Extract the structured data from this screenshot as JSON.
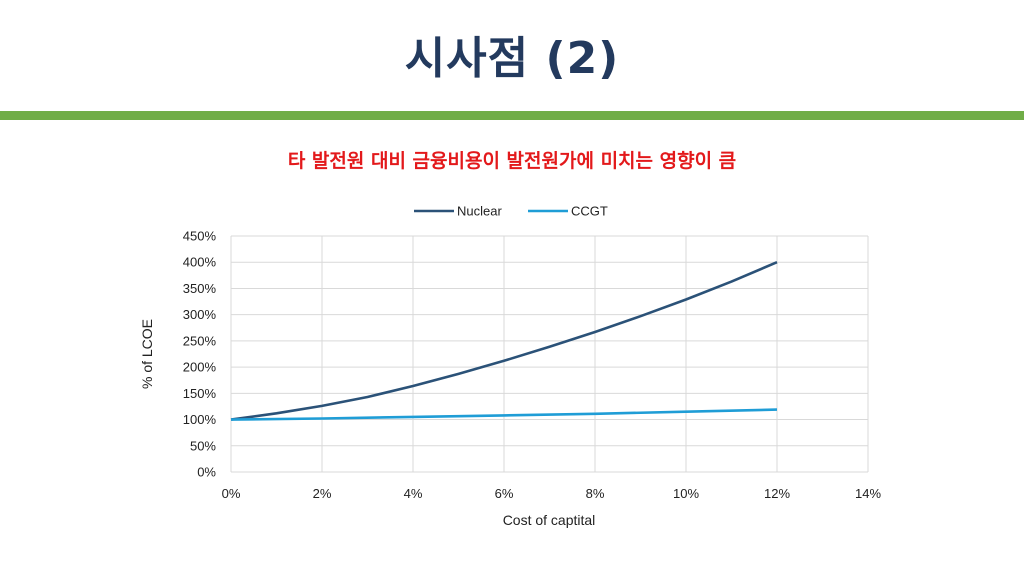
{
  "slide": {
    "title": "시사점 (2)",
    "subtitle": "타 발전원 대비 금융비용이 발전원가에 미치는 영향이 큼"
  },
  "chart_data": {
    "type": "line",
    "xlabel": "Cost of captital",
    "ylabel": "% of LCOE",
    "xlim": [
      0,
      14
    ],
    "ylim": [
      0,
      450
    ],
    "x_ticks": [
      "0%",
      "2%",
      "4%",
      "6%",
      "8%",
      "10%",
      "12%",
      "14%"
    ],
    "y_ticks": [
      "0%",
      "50%",
      "100%",
      "150%",
      "200%",
      "250%",
      "300%",
      "350%",
      "400%",
      "450%"
    ],
    "grid": true,
    "legend_position": "top-center",
    "series": [
      {
        "name": "Nuclear",
        "color": "#2b5278",
        "x": [
          0,
          1,
          2,
          3,
          4,
          5,
          6,
          7,
          8,
          9,
          10,
          11,
          12
        ],
        "y": [
          100,
          112,
          126,
          143,
          164,
          187,
          212,
          239,
          267,
          297,
          329,
          363,
          400
        ]
      },
      {
        "name": "CCGT",
        "color": "#1f9dd6",
        "x": [
          0,
          2,
          4,
          6,
          8,
          10,
          12
        ],
        "y": [
          100,
          102,
          105,
          108,
          111,
          115,
          119
        ]
      }
    ]
  }
}
